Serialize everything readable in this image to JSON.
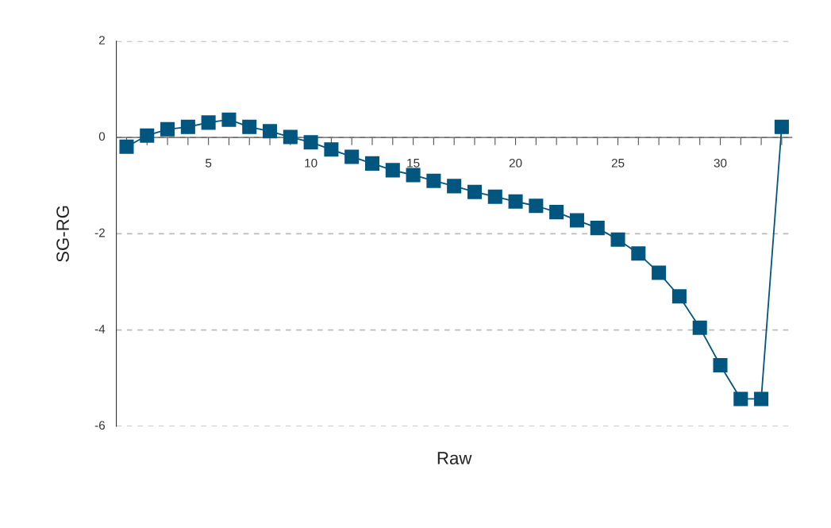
{
  "chart_data": {
    "type": "line",
    "xlabel": "Raw",
    "ylabel": "SG-RG",
    "x": [
      1,
      2,
      3,
      4,
      5,
      6,
      7,
      8,
      9,
      10,
      11,
      12,
      13,
      14,
      15,
      16,
      17,
      18,
      19,
      20,
      21,
      22,
      23,
      24,
      25,
      26,
      27,
      28,
      29,
      30,
      31,
      32,
      33
    ],
    "series": [
      {
        "color": "#00567f",
        "values": [
          -0.19,
          0.04,
          0.17,
          0.22,
          0.31,
          0.37,
          0.22,
          0.13,
          0.01,
          -0.1,
          -0.25,
          -0.4,
          -0.54,
          -0.68,
          -0.78,
          -0.9,
          -1.01,
          -1.13,
          -1.23,
          -1.33,
          -1.42,
          -1.55,
          -1.72,
          -1.88,
          -2.12,
          -2.41,
          -2.81,
          -3.3,
          -3.95,
          -4.73,
          -5.43,
          -5.43,
          0.22
        ]
      }
    ],
    "xlim": [
      0.5,
      33.5
    ],
    "xticks": [
      {
        "value": 1,
        "label": null
      },
      {
        "value": 2,
        "label": null
      },
      {
        "value": 3,
        "label": null
      },
      {
        "value": 4,
        "label": null
      },
      5,
      {
        "value": 6,
        "label": null
      },
      {
        "value": 7,
        "label": null
      },
      {
        "value": 8,
        "label": null
      },
      {
        "value": 9,
        "label": null
      },
      10,
      {
        "value": 11,
        "label": null
      },
      {
        "value": 12,
        "label": null
      },
      {
        "value": 13,
        "label": null
      },
      {
        "value": 14,
        "label": null
      },
      15,
      {
        "value": 16,
        "label": null
      },
      {
        "value": 17,
        "label": null
      },
      {
        "value": 18,
        "label": null
      },
      {
        "value": 19,
        "label": null
      },
      20,
      {
        "value": 21,
        "label": null
      },
      {
        "value": 22,
        "label": null
      },
      {
        "value": 23,
        "label": null
      },
      {
        "value": 24,
        "label": null
      },
      25,
      {
        "value": 26,
        "label": null
      },
      {
        "value": 27,
        "label": null
      },
      {
        "value": 28,
        "label": null
      },
      {
        "value": 29,
        "label": null
      },
      30,
      {
        "value": 31,
        "label": null
      },
      {
        "value": 32,
        "label": null
      },
      {
        "value": 33,
        "label": null
      }
    ],
    "ylim": [
      -6,
      2
    ],
    "yticks": [
      -6,
      -4,
      -2,
      0,
      2
    ],
    "grid": "y",
    "marker": "square",
    "line_style": "solid"
  }
}
